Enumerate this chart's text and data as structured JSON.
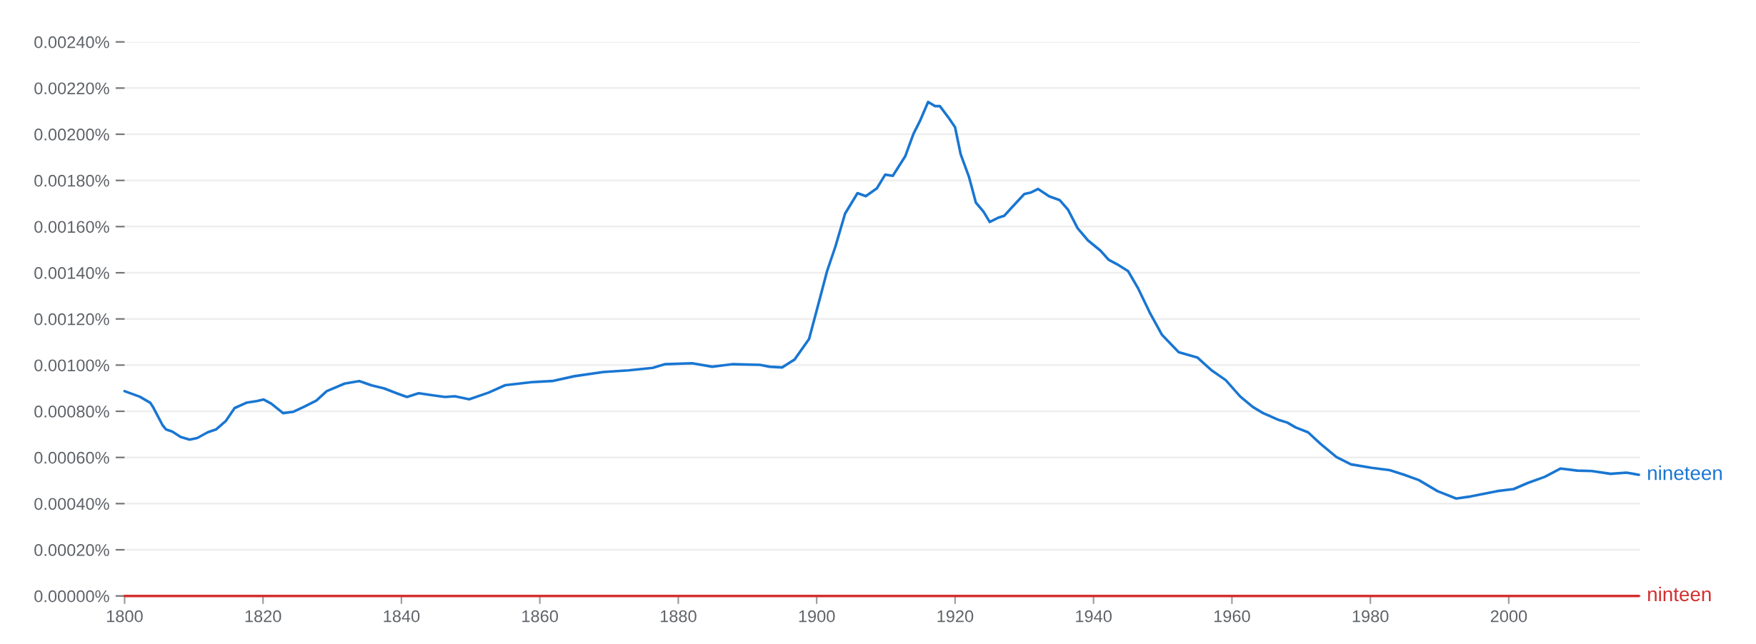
{
  "chart_data": {
    "type": "line",
    "xlim": [
      1800,
      2019
    ],
    "xticks": [
      1800,
      1820,
      1840,
      1860,
      1880,
      1900,
      1920,
      1940,
      1960,
      1980,
      2000
    ],
    "ylim": [
      0,
      0.0024
    ],
    "yticks": [
      {
        "value": 0,
        "label": "0.00000%"
      },
      {
        "value": 0.0002,
        "label": "0.00020%"
      },
      {
        "value": 0.0004,
        "label": "0.00040%"
      },
      {
        "value": 0.0006,
        "label": "0.00060%"
      },
      {
        "value": 0.0008,
        "label": "0.00080%"
      },
      {
        "value": 0.001,
        "label": "0.00100%"
      },
      {
        "value": 0.0012,
        "label": "0.00120%"
      },
      {
        "value": 0.0014,
        "label": "0.00140%"
      },
      {
        "value": 0.0016,
        "label": "0.00160%"
      },
      {
        "value": 0.0018,
        "label": "0.00180%"
      },
      {
        "value": 0.002,
        "label": "0.00200%"
      },
      {
        "value": 0.0022,
        "label": "0.00220%"
      },
      {
        "value": 0.0024,
        "label": "0.00240%"
      }
    ],
    "grid": "y",
    "series": [
      {
        "name": "nineteen",
        "color": "#1976d2",
        "x": [
          1800,
          1802.2,
          1803.7,
          1804.1,
          1805.5,
          1806,
          1806.9,
          1808.1,
          1809.4,
          1810.5,
          1812,
          1813.2,
          1814.6,
          1815.9,
          1817.6,
          1819.1,
          1820.1,
          1821.2,
          1822.9,
          1824.4,
          1825.9,
          1827.7,
          1829.2,
          1831.8,
          1833.9,
          1835.7,
          1837.5,
          1839.5,
          1840.8,
          1842.5,
          1844.6,
          1846.3,
          1847.7,
          1849.8,
          1852.6,
          1855,
          1858.8,
          1861.8,
          1865,
          1869.2,
          1872.8,
          1876.3,
          1878.1,
          1882,
          1884.9,
          1887.9,
          1891.8,
          1893.2,
          1895,
          1896.8,
          1898.9,
          1900.4,
          1901.5,
          1902.7,
          1904.1,
          1905.9,
          1907.1,
          1908.7,
          1909.9,
          1911,
          1912.8,
          1914,
          1914.9,
          1916.1,
          1917.1,
          1917.8,
          1919,
          1920,
          1920.8,
          1922,
          1923,
          1924.1,
          1925,
          1926.2,
          1927.1,
          1928.2,
          1930,
          1930.9,
          1932,
          1933.6,
          1935.1,
          1936.3,
          1937.7,
          1939.2,
          1941,
          1942.2,
          1943.4,
          1945,
          1946.4,
          1948.1,
          1949.9,
          1952.3,
          1955,
          1957,
          1959.1,
          1961.2,
          1963,
          1964.5,
          1966.8,
          1968,
          1969.2,
          1971,
          1972.8,
          1975.1,
          1977.2,
          1980.2,
          1982.8,
          1984.9,
          1987,
          1989.7,
          1992.4,
          1994.5,
          1998.3,
          2000.7,
          2002.8,
          2005.2,
          2007.5,
          2009.9,
          2012,
          2014.7,
          2017,
          2018.8
        ],
        "values": [
          0.000887,
          0.000863,
          0.000837,
          0.000819,
          0.000739,
          0.000721,
          0.000712,
          0.000689,
          0.000677,
          0.000684,
          0.000709,
          0.000721,
          0.000757,
          0.000814,
          0.000837,
          0.000844,
          0.000851,
          0.000833,
          0.000792,
          0.000798,
          0.000819,
          0.000846,
          0.000887,
          0.00092,
          0.000931,
          0.000912,
          0.000899,
          0.000876,
          0.000862,
          0.000878,
          0.000869,
          0.000862,
          0.000865,
          0.000852,
          0.000881,
          0.000913,
          0.000926,
          0.000931,
          0.000952,
          0.00097,
          0.000977,
          0.000988,
          0.001004,
          0.001008,
          0.000993,
          0.001004,
          0.001001,
          0.000993,
          0.00099,
          0.001024,
          0.001113,
          0.001282,
          0.001407,
          0.001513,
          0.001656,
          0.001745,
          0.001732,
          0.001766,
          0.001825,
          0.00182,
          0.001905,
          0.002003,
          0.002056,
          0.00214,
          0.002122,
          0.002122,
          0.002074,
          0.00203,
          0.001914,
          0.001816,
          0.001704,
          0.001665,
          0.00162,
          0.001638,
          0.001647,
          0.001683,
          0.001741,
          0.001747,
          0.001763,
          0.001731,
          0.001715,
          0.001674,
          0.001593,
          0.00154,
          0.001496,
          0.001456,
          0.001437,
          0.001407,
          0.001335,
          0.001229,
          0.001131,
          0.001056,
          0.001033,
          0.000979,
          0.000935,
          0.000864,
          0.000819,
          0.000792,
          0.000762,
          0.000751,
          0.00073,
          0.000709,
          0.000659,
          0.000602,
          0.00057,
          0.000555,
          0.000545,
          0.000525,
          0.000502,
          0.000454,
          0.000422,
          0.000431,
          0.000454,
          0.000463,
          0.00049,
          0.000516,
          0.000552,
          0.000543,
          0.000541,
          0.000529,
          0.000534,
          0.000525
        ]
      },
      {
        "name": "ninteen",
        "color": "#d32f2f",
        "x": [
          1800,
          1810,
          1820,
          1830,
          1840,
          1850,
          1860,
          1870,
          1880,
          1890,
          1900,
          1910,
          1920,
          1930,
          1940,
          1950,
          1960,
          1970,
          1980,
          1990,
          2000,
          2010,
          2018.8
        ],
        "values": [
          0,
          0,
          0,
          0,
          0,
          0,
          0,
          0,
          0,
          0,
          0,
          0,
          0,
          0,
          0,
          0,
          0,
          0,
          0,
          0,
          0,
          0,
          0
        ]
      }
    ]
  }
}
